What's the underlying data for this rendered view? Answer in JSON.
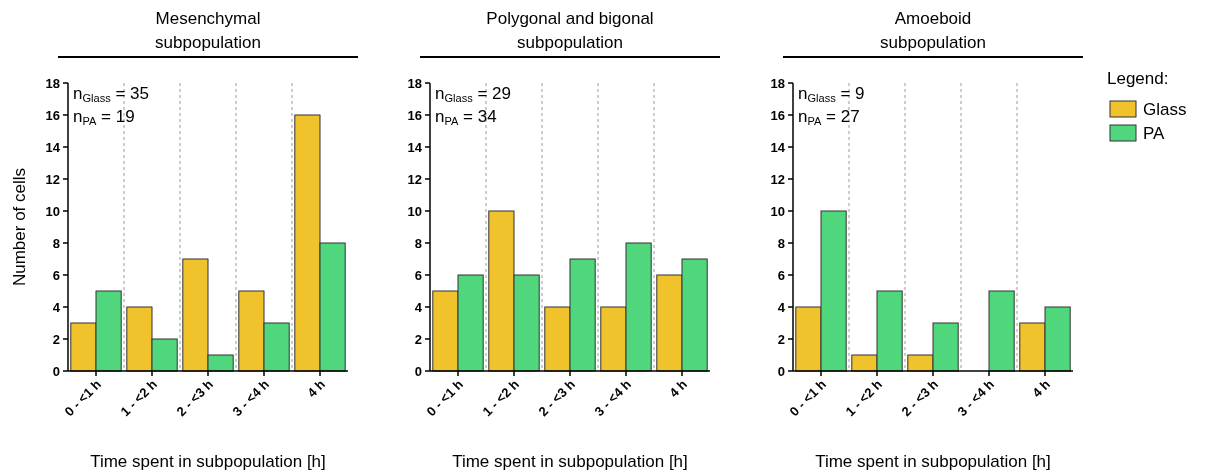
{
  "chart_data": [
    {
      "type": "bar",
      "title": "Mesenchymal\nsubpopulation",
      "xlabel": "Time spent in subpopulation [h]",
      "ylabel": "Number of cells",
      "categories": [
        "0 - <1 h",
        "1 - <2 h",
        "2 - <3 h",
        "3 - <4 h",
        "4 h"
      ],
      "series": [
        {
          "color": "#f0c22c",
          "values": [
            3,
            4,
            7,
            5,
            16
          ]
        },
        {
          "color": "#50d67c",
          "values": [
            5,
            2,
            1,
            3,
            8
          ]
        }
      ],
      "ylim": [
        0,
        18
      ],
      "yticks": [
        0,
        2,
        4,
        6,
        8,
        10,
        12,
        14,
        16,
        18
      ],
      "grid": "x",
      "legend": false,
      "annotations": [
        "n$_{Glass}$ = 35",
        "n$_{PA}$ = 19"
      ]
    },
    {
      "type": "bar",
      "title": "Polygonal and bigonal\nsubpopulation",
      "xlabel": "Time spent in subpopulation [h]",
      "categories": [
        "0 - <1 h",
        "1 - <2 h",
        "2 - <3 h",
        "3 - <4 h",
        "4 h"
      ],
      "series": [
        {
          "color": "#f0c22c",
          "values": [
            5,
            10,
            4,
            4,
            6
          ]
        },
        {
          "color": "#50d67c",
          "values": [
            6,
            6,
            7,
            8,
            7
          ]
        }
      ],
      "ylim": [
        0,
        18
      ],
      "yticks": [
        0,
        2,
        4,
        6,
        8,
        10,
        12,
        14,
        16,
        18
      ],
      "grid": "x",
      "legend": false,
      "annotations": [
        "n$_{Glass}$ = 29",
        "n$_{PA}$ = 34"
      ]
    },
    {
      "type": "bar",
      "title": "Amoeboid\nsubpopulation",
      "xlabel": "Time spent in subpopulation [h]",
      "categories": [
        "0 - <1 h",
        "1 - <2 h",
        "2 - <3 h",
        "3 - <4 h",
        "4 h"
      ],
      "series": [
        {
          "name": "Glass",
          "color": "#f0c22c",
          "values": [
            4,
            1,
            1,
            0,
            3
          ]
        },
        {
          "name": "PA",
          "color": "#50d67c",
          "values": [
            10,
            5,
            3,
            5,
            4
          ]
        }
      ],
      "ylim": [
        0,
        18
      ],
      "yticks": [
        0,
        2,
        4,
        6,
        8,
        10,
        12,
        14,
        16,
        18
      ],
      "grid": "x",
      "legend": "right",
      "legend_title": "Legend:",
      "annotations": [
        "n$_{Glass}$ = 9",
        "n$_{PA}$ = 27"
      ]
    }
  ]
}
